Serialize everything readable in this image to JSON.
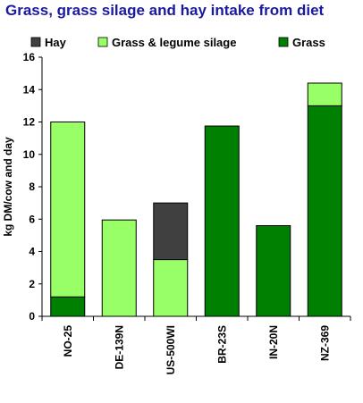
{
  "chart_data": {
    "type": "bar",
    "stacked": true,
    "title": "Grass, grass silage and hay intake from diet",
    "ylabel": "kg DM/cow and day",
    "xlabel": "",
    "ylim": [
      0,
      16
    ],
    "yticks": [
      0,
      2,
      4,
      6,
      8,
      10,
      12,
      14,
      16
    ],
    "categories": [
      "NO-25",
      "DE-139N",
      "US-500WI",
      "BR-23S",
      "IN-20N",
      "NZ-369"
    ],
    "series": [
      {
        "name": "Grass",
        "color": "#008000",
        "values": [
          1.2,
          0,
          0,
          11.75,
          5.6,
          13.0
        ]
      },
      {
        "name": "Grass & legume silage",
        "color": "#99ff66",
        "values": [
          10.8,
          5.95,
          3.5,
          0,
          0,
          1.4
        ]
      },
      {
        "name": "Hay",
        "color": "#404040",
        "values": [
          0,
          0,
          3.5,
          0,
          0,
          0
        ]
      }
    ],
    "legend": {
      "position": "top",
      "order": [
        "Hay",
        "Grass & legume silage",
        "Grass"
      ]
    },
    "grid": false
  }
}
